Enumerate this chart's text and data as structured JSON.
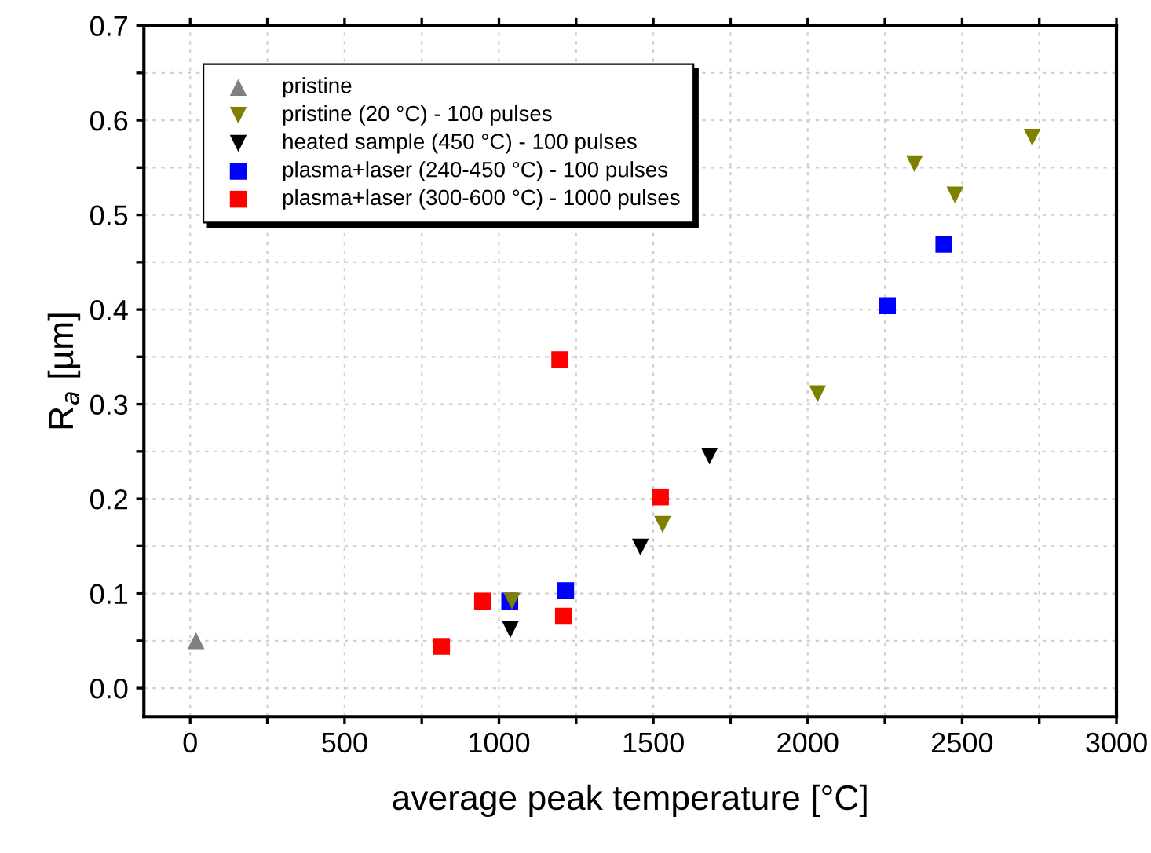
{
  "chart_data": {
    "type": "scatter",
    "xlabel": "average peak temperature [°C]",
    "ylabel": "R$_{a}$ [µm]",
    "xlim": [
      -150,
      3000
    ],
    "ylim": [
      -0.03,
      0.7
    ],
    "xticks": [
      0,
      {
        "value": 250,
        "label": null
      },
      500,
      {
        "value": 750,
        "label": null
      },
      1000,
      {
        "value": 1250,
        "label": null
      },
      1500,
      {
        "value": 1750,
        "label": null
      },
      2000,
      {
        "value": 2250,
        "label": null
      },
      2500,
      {
        "value": 2750,
        "label": null
      },
      3000
    ],
    "yticks": [
      "0.0",
      {
        "value": 0.05,
        "label": null
      },
      0.1,
      {
        "value": 0.15,
        "label": null
      },
      0.2,
      {
        "value": 0.25,
        "label": null
      },
      0.3,
      {
        "value": 0.35,
        "label": null
      },
      0.4,
      {
        "value": 0.45,
        "label": null
      },
      0.5,
      {
        "value": 0.55,
        "label": null
      },
      0.6,
      {
        "value": 0.65,
        "label": null
      },
      0.7
    ],
    "grid": true,
    "legend": "top left",
    "series": [
      {
        "name": "pristine",
        "color": "#808080",
        "marker": "triangle",
        "x": [
          19
        ],
        "values": [
          0.05
        ]
      },
      {
        "name": "pristine (20 °C) - 100 pulses",
        "color": "#808000",
        "marker": "triangle_down",
        "x": [
          1042,
          1530,
          2032,
          2346,
          2477,
          2727
        ],
        "values": [
          0.092,
          0.173,
          0.311,
          0.554,
          0.521,
          0.582
        ]
      },
      {
        "name": "heated sample (450 °C) - 100 pulses",
        "color": "#000000",
        "marker": "triangle_down",
        "x": [
          1037,
          1458,
          1682
        ],
        "values": [
          0.062,
          0.149,
          0.245
        ]
      },
      {
        "name": "plasma+laser (240-450 °C) - 100 pulses",
        "color": "#0000ff",
        "marker": "square",
        "x": [
          1035,
          1216,
          2258,
          2441
        ],
        "values": [
          0.092,
          0.103,
          0.404,
          0.469
        ]
      },
      {
        "name": "plasma+laser (300-600 °C) - 1000 pulses",
        "color": "#ff0000",
        "marker": "square",
        "x": [
          814,
          947,
          1197,
          1209,
          1523
        ],
        "values": [
          0.044,
          0.092,
          0.347,
          0.076,
          0.202
        ]
      }
    ]
  }
}
